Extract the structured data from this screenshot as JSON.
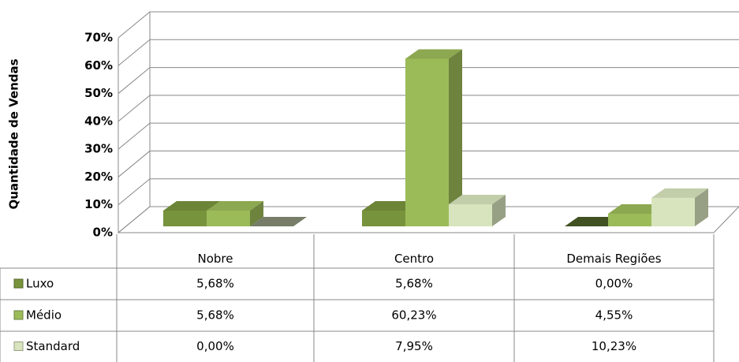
{
  "chart_data": {
    "type": "bar3d",
    "y_label": "Quantidade de Vendas",
    "categories": [
      "Nobre",
      "Centro",
      "Demais Regiões"
    ],
    "series": [
      {
        "name": "Luxo",
        "color": "#77933c",
        "values": [
          5.68,
          5.68,
          0
        ],
        "value_labels": [
          "5,68%",
          "5,68%",
          "0,00%"
        ]
      },
      {
        "name": "Médio",
        "color": "#9bbb59",
        "values": [
          5.68,
          60.23,
          4.55
        ],
        "value_labels": [
          "5,68%",
          "60,23%",
          "4,55%"
        ]
      },
      {
        "name": "Standard",
        "color": "#d7e4bd",
        "values": [
          0,
          7.95,
          10.23
        ],
        "value_labels": [
          "0,00%",
          "7,95%",
          "10,23%"
        ]
      }
    ],
    "ylim": [
      0,
      70
    ],
    "yticks": [
      {
        "value": 0,
        "label": "0%"
      },
      {
        "value": 10,
        "label": "10%"
      },
      {
        "value": 20,
        "label": "20%"
      },
      {
        "value": 30,
        "label": "30%"
      },
      {
        "value": 40,
        "label": "40%"
      },
      {
        "value": 50,
        "label": "50%"
      },
      {
        "value": 60,
        "label": "60%"
      },
      {
        "value": 70,
        "label": "70%"
      }
    ],
    "grid": true
  }
}
